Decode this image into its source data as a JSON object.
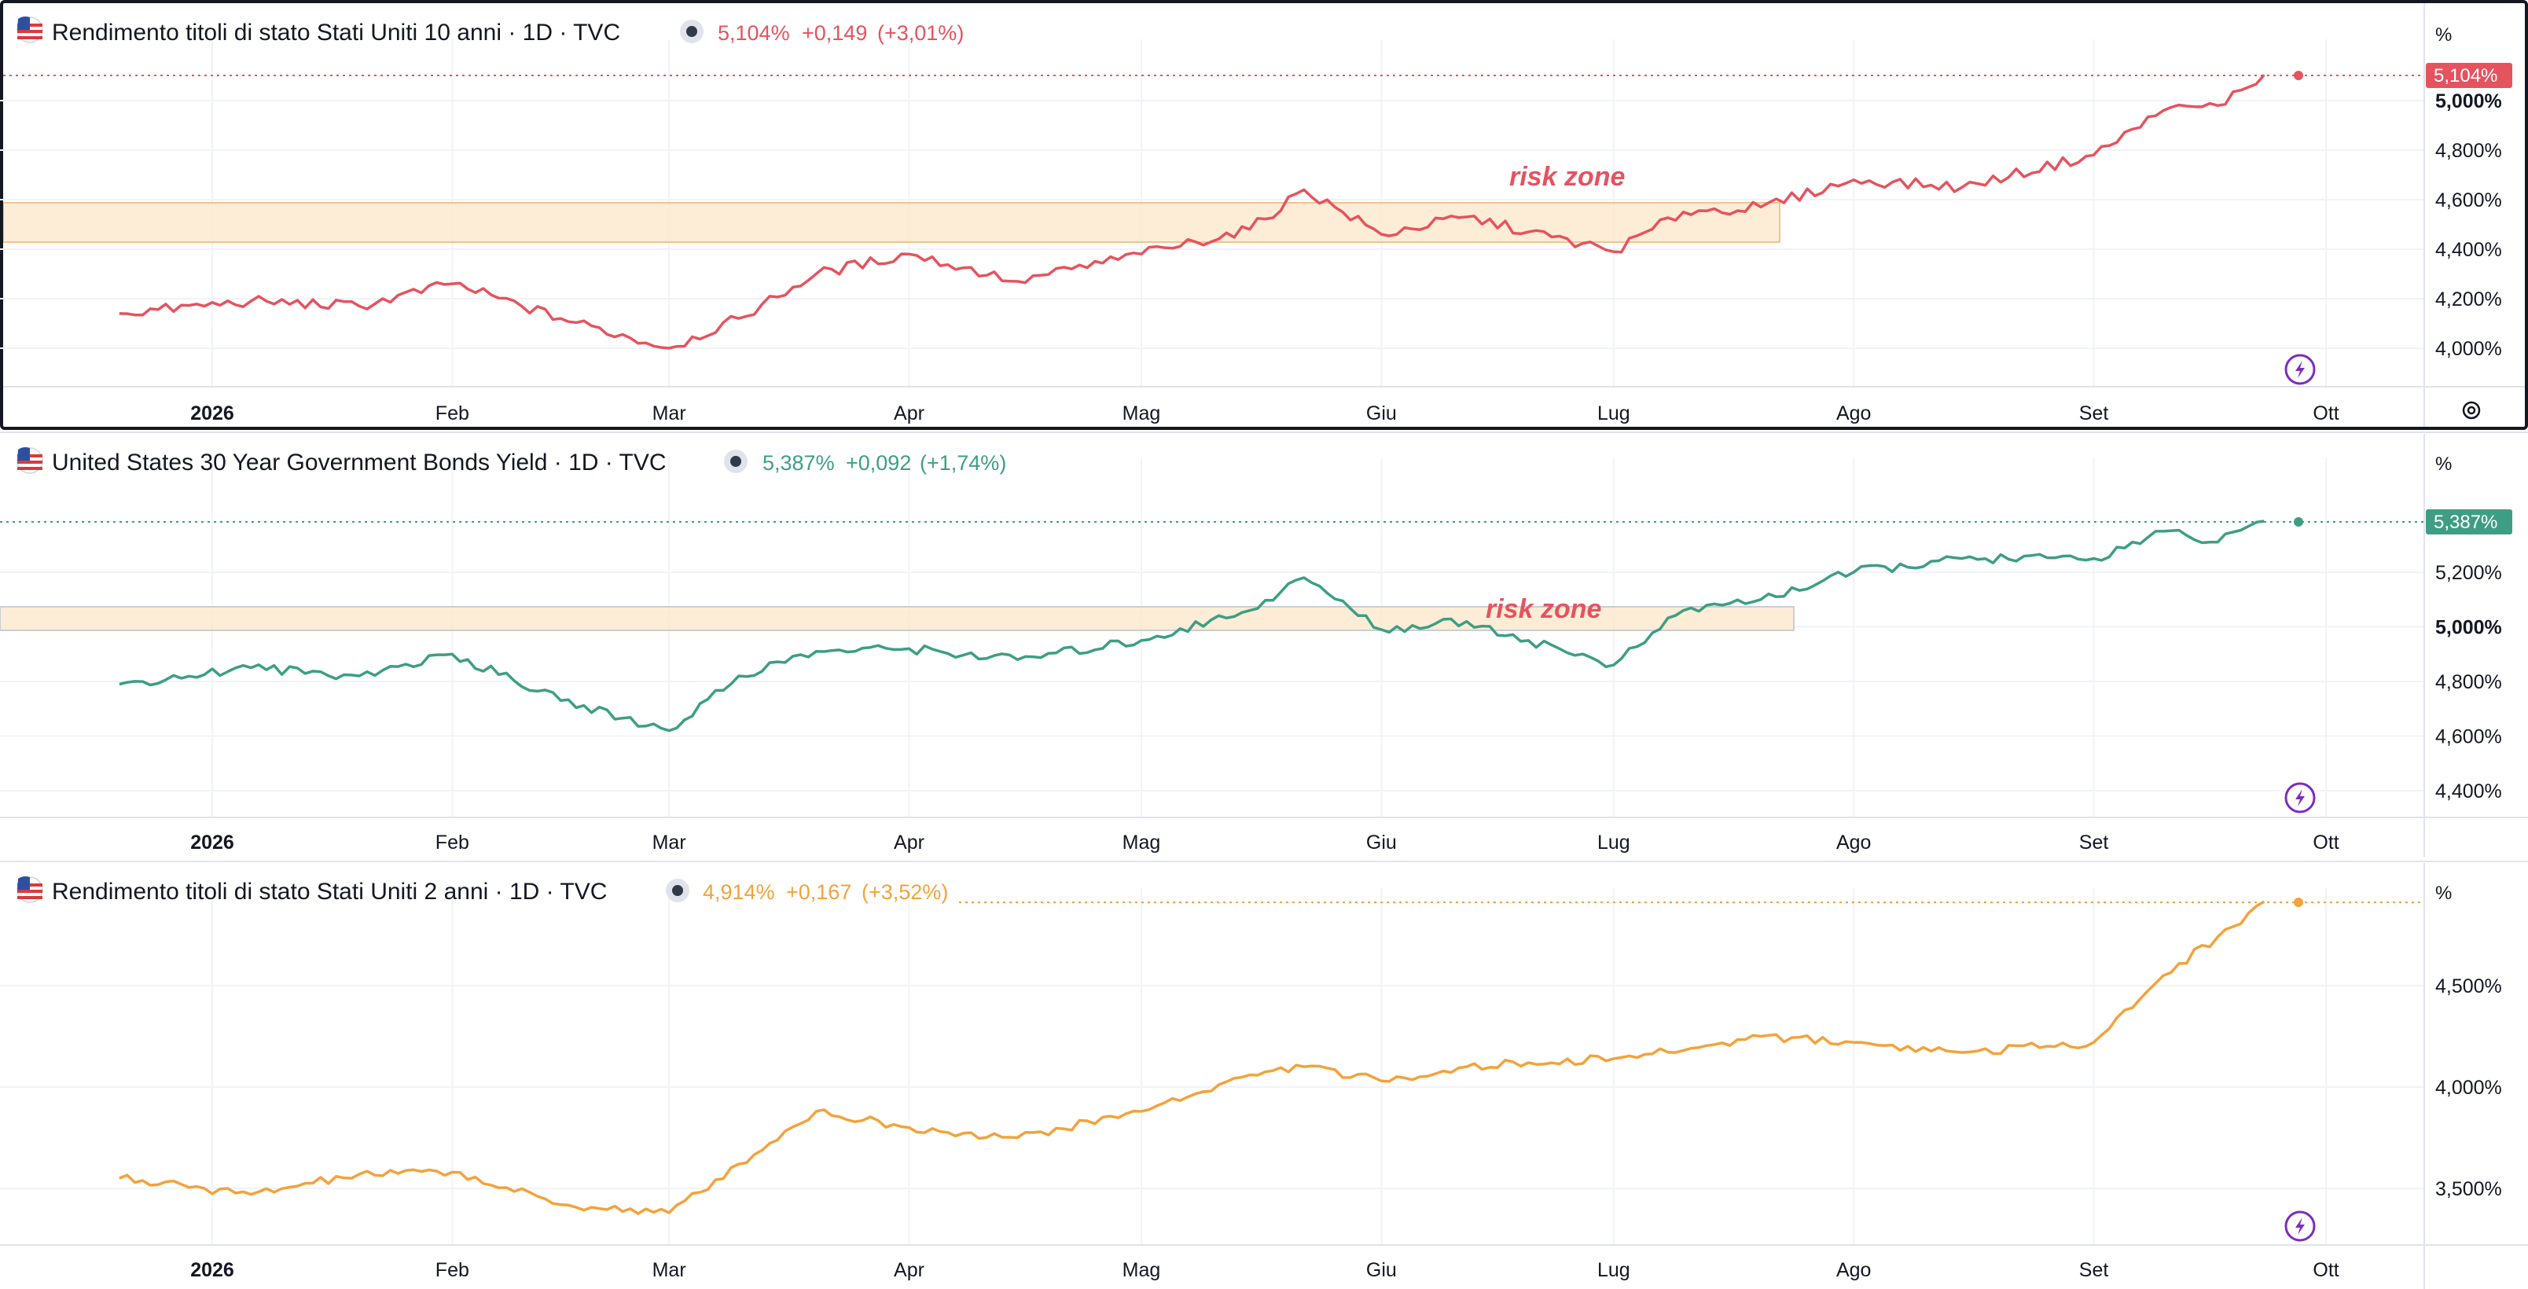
{
  "colors": {
    "p1": "#e5535f",
    "p2": "#3d9e85",
    "p3": "#f2a33c",
    "zone_fill": "#fde7c8",
    "zone_stroke": "#f3c489",
    "zone_text": "#e5535f",
    "grid": "#f0f3f7",
    "axis_text": "#131722",
    "lightning": "#7b2cbf"
  },
  "x_axis": {
    "ticks": [
      {
        "label": "2026",
        "bold": true
      },
      {
        "label": "Feb"
      },
      {
        "label": "Mar"
      },
      {
        "label": "Apr"
      },
      {
        "label": "Mag"
      },
      {
        "label": "Giu"
      },
      {
        "label": "Lug"
      },
      {
        "label": "Ago"
      },
      {
        "label": "Set"
      },
      {
        "label": "Ott"
      }
    ]
  },
  "panels": [
    {
      "icon": "us-flag-icon",
      "title": "Rendimento titoli di stato Stati Uniti 10 anni · 1D · TVC",
      "last": "5,104%",
      "change": "+0,149",
      "change_pct": "(+3,01%)",
      "unit": "%",
      "price_tag": "5,104%",
      "zone_label": "risk zone",
      "y_ticks": [
        "5,000%",
        "4,800%",
        "4,600%",
        "4,400%",
        "4,200%",
        "4,000%"
      ]
    },
    {
      "icon": "us-flag-icon",
      "title": "United States 30 Year Government Bonds Yield · 1D · TVC",
      "last": "5,387%",
      "change": "+0,092",
      "change_pct": "(+1,74%)",
      "unit": "%",
      "price_tag": "5,387%",
      "zone_label": "risk zone",
      "y_ticks": [
        "5,200%",
        "5,000%",
        "4,800%",
        "4,600%",
        "4,400%"
      ]
    },
    {
      "icon": "us-flag-icon",
      "title": "Rendimento titoli di stato Stati Uniti 2 anni · 1D · TVC",
      "last": "4,914%",
      "change": "+0,167",
      "change_pct": "(+3,52%)",
      "unit": "%",
      "y_ticks": [
        "4,500%",
        "4,000%",
        "3,500%"
      ]
    }
  ],
  "chart_data": [
    {
      "type": "line",
      "title": "Rendimento titoli di stato Stati Uniti 10 anni · 1D · TVC",
      "ylabel": "%",
      "ylim": [
        3.88,
        5.16
      ],
      "zone": {
        "x": [
          "2025-12-20",
          "2026-07-21"
        ],
        "y": [
          4.43,
          4.59
        ],
        "label": "risk zone"
      },
      "series": [
        {
          "x": [
            "2025-12-20",
            "2026-01-06",
            "2026-01-20",
            "2026-02-01",
            "2026-02-15",
            "2026-03-01",
            "2026-03-10",
            "2026-03-20",
            "2026-04-01",
            "2026-04-15",
            "2026-05-01",
            "2026-05-15",
            "2026-05-22",
            "2026-06-01",
            "2026-06-12",
            "2026-06-20",
            "2026-07-01",
            "2026-07-10",
            "2026-07-20",
            "2026-08-01",
            "2026-08-15",
            "2026-09-01",
            "2026-09-10",
            "2026-09-17",
            "2026-09-23"
          ],
          "values": [
            4.14,
            4.19,
            4.17,
            4.26,
            4.12,
            4.0,
            4.12,
            4.3,
            4.38,
            4.27,
            4.38,
            4.48,
            4.64,
            4.46,
            4.53,
            4.47,
            4.39,
            4.55,
            4.57,
            4.68,
            4.65,
            4.78,
            4.96,
            4.98,
            5.104
          ]
        }
      ]
    },
    {
      "type": "line",
      "title": "United States 30 Year Government Bonds Yield · 1D · TVC",
      "ylabel": "%",
      "ylim": [
        4.33,
        5.44
      ],
      "zone": {
        "x": [
          "2025-12-20",
          "2026-07-22"
        ],
        "y": [
          4.99,
          5.06
        ],
        "label": "risk zone"
      },
      "series": [
        {
          "x": [
            "2025-12-20",
            "2026-01-06",
            "2026-01-20",
            "2026-02-01",
            "2026-02-15",
            "2026-03-01",
            "2026-03-10",
            "2026-03-20",
            "2026-04-01",
            "2026-04-15",
            "2026-05-01",
            "2026-05-15",
            "2026-05-22",
            "2026-06-01",
            "2026-06-12",
            "2026-06-20",
            "2026-07-01",
            "2026-07-10",
            "2026-07-20",
            "2026-08-01",
            "2026-08-15",
            "2026-09-01",
            "2026-09-10",
            "2026-09-17",
            "2026-09-23"
          ],
          "values": [
            4.79,
            4.85,
            4.82,
            4.9,
            4.73,
            4.62,
            4.82,
            4.91,
            4.92,
            4.88,
            4.95,
            5.06,
            5.18,
            4.99,
            5.02,
            4.95,
            4.86,
            5.06,
            5.1,
            5.2,
            5.25,
            5.25,
            5.35,
            5.31,
            5.387
          ]
        }
      ]
    },
    {
      "type": "line",
      "title": "Rendimento titoli di stato Stati Uniti 2 anni · 1D · TVC",
      "ylabel": "%",
      "ylim": [
        3.25,
        5.0
      ],
      "series": [
        {
          "x": [
            "2025-12-20",
            "2026-01-06",
            "2026-01-20",
            "2026-02-01",
            "2026-02-15",
            "2026-03-01",
            "2026-03-10",
            "2026-03-20",
            "2026-04-01",
            "2026-04-15",
            "2026-05-01",
            "2026-05-15",
            "2026-05-22",
            "2026-06-01",
            "2026-06-12",
            "2026-06-20",
            "2026-07-01",
            "2026-07-10",
            "2026-07-20",
            "2026-08-01",
            "2026-08-15",
            "2026-09-01",
            "2026-09-10",
            "2026-09-17",
            "2026-09-23"
          ],
          "values": [
            3.55,
            3.47,
            3.57,
            3.58,
            3.42,
            3.38,
            3.62,
            3.88,
            3.8,
            3.75,
            3.88,
            4.06,
            4.1,
            4.03,
            4.1,
            4.12,
            4.14,
            4.18,
            4.25,
            4.22,
            4.17,
            4.22,
            4.55,
            4.74,
            4.914
          ]
        }
      ]
    }
  ]
}
